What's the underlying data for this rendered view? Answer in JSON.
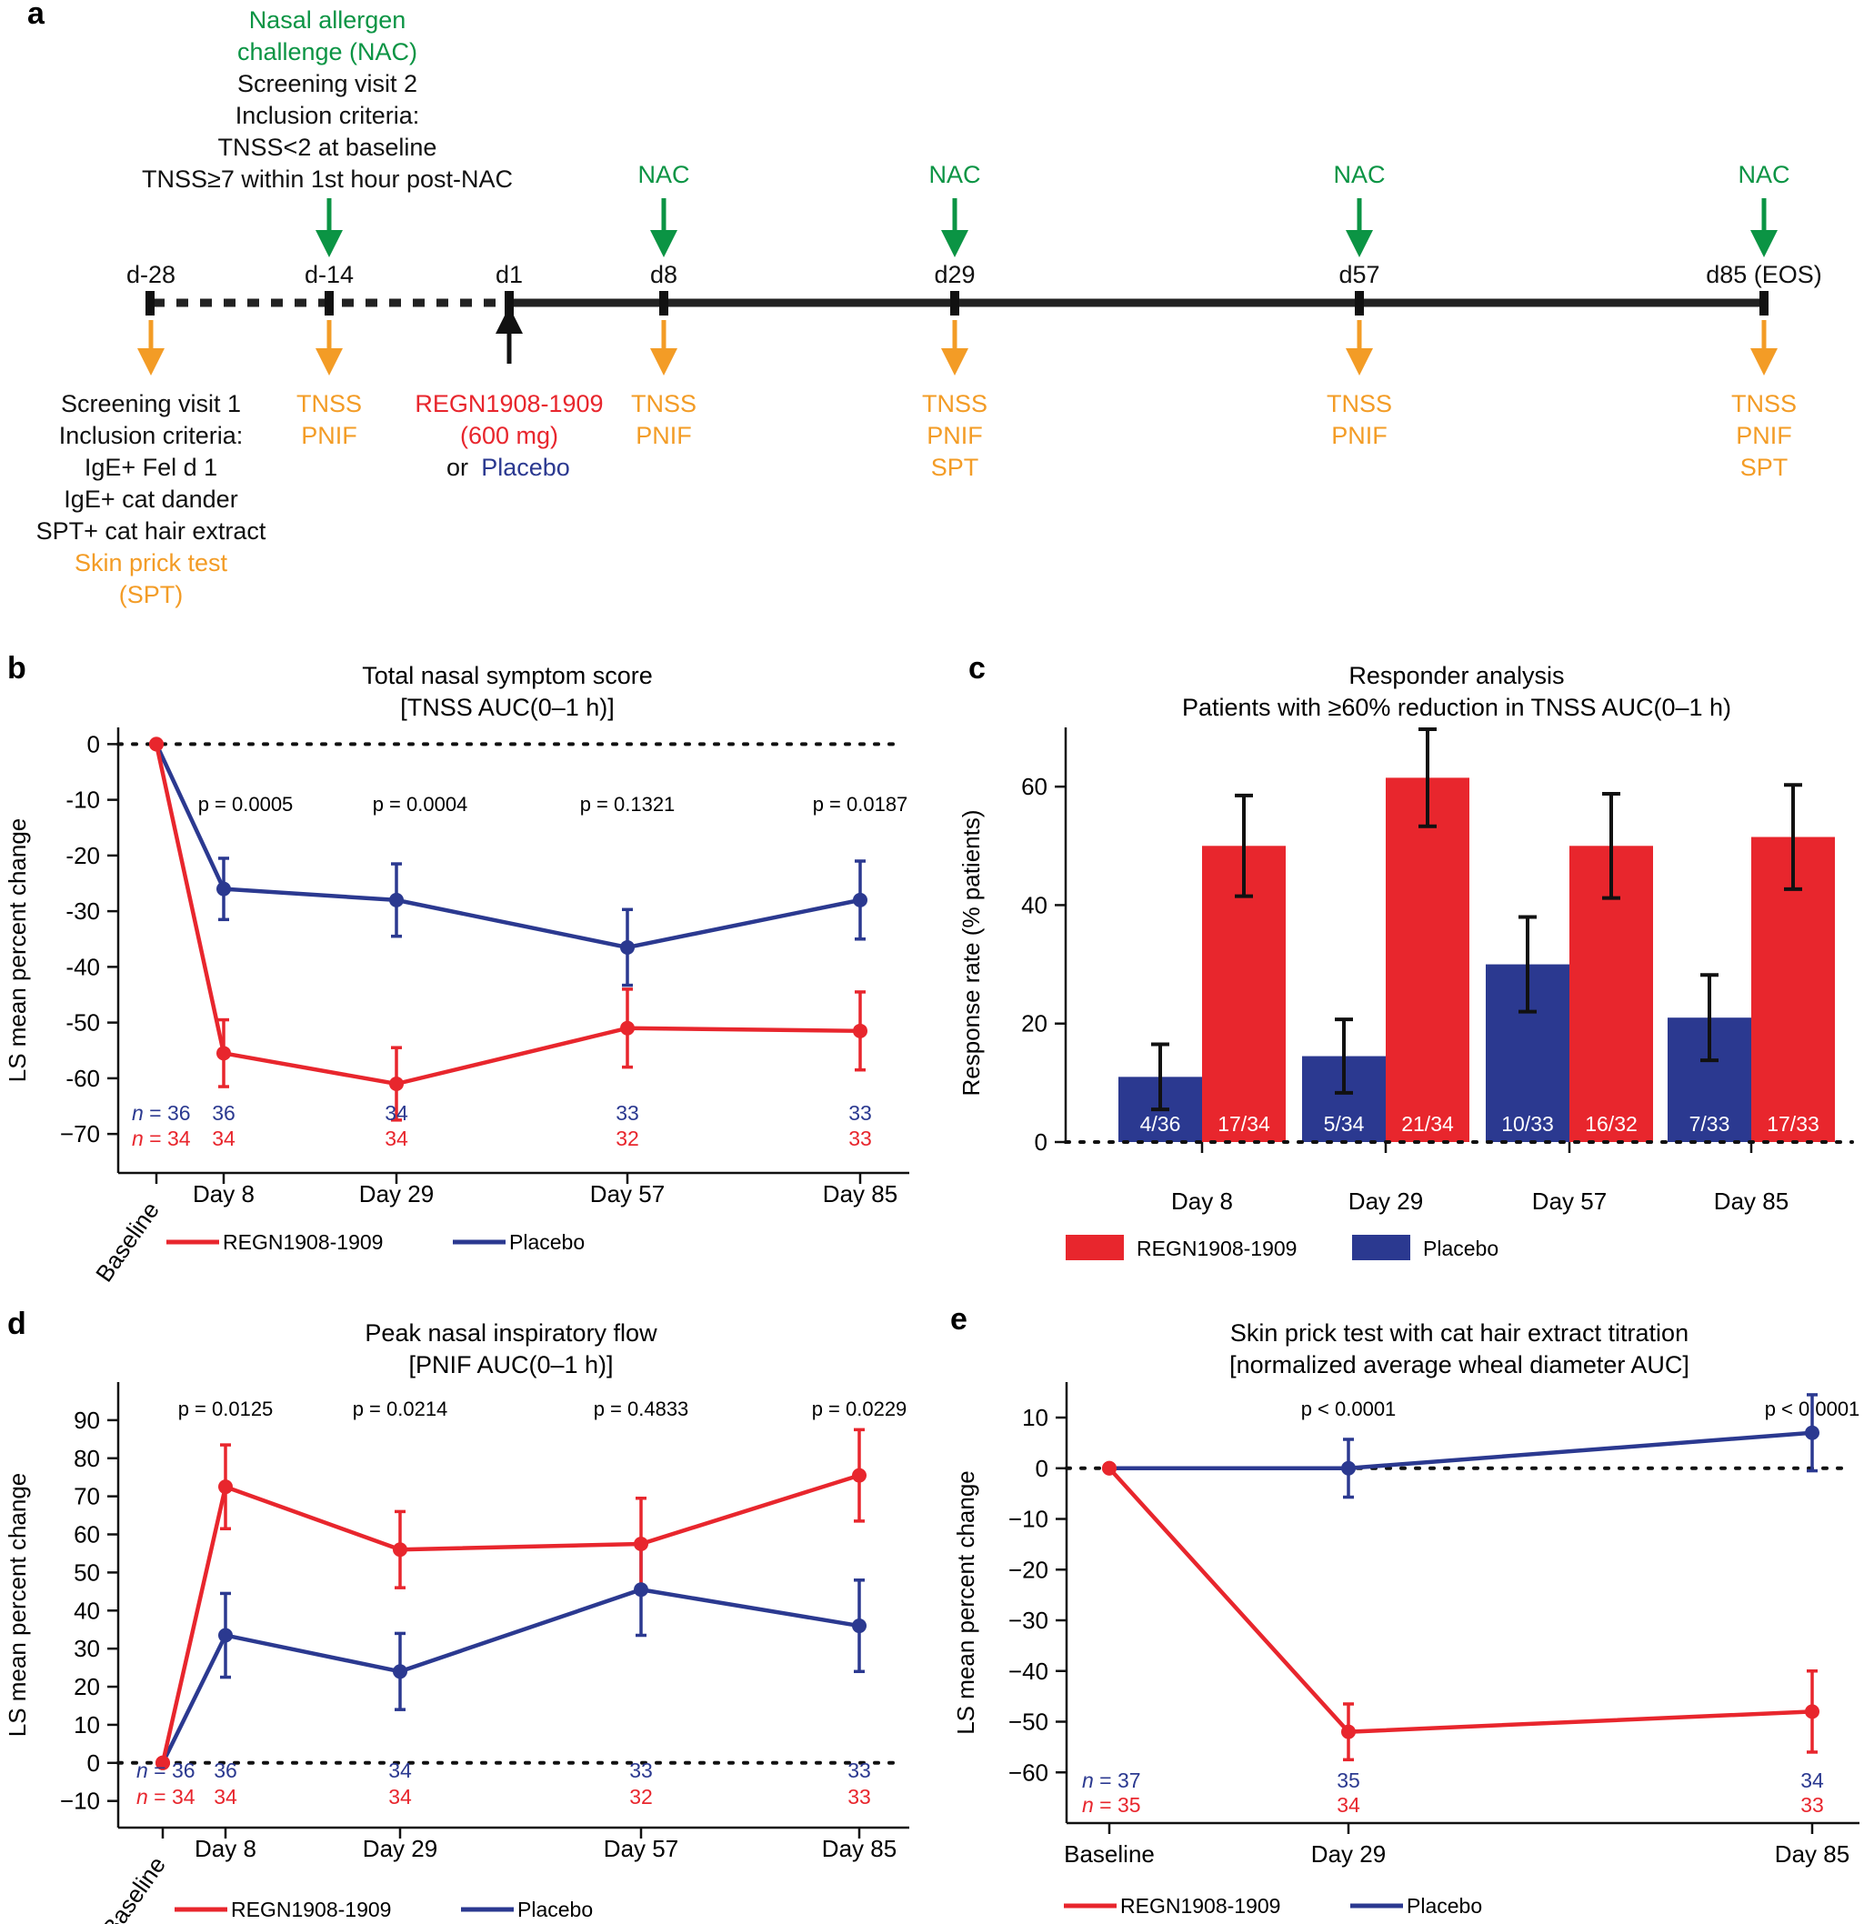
{
  "colors": {
    "red": "#e8262d",
    "blue": "#2b3990",
    "green": "#0b9444",
    "orange": "#f39c26",
    "black": "#222222"
  },
  "panel_a": {
    "label": "a",
    "top_annotation_green": [
      "Nasal allergen",
      "challenge (NAC)"
    ],
    "top_annotation_black": [
      "Screening visit 2",
      "Inclusion criteria:",
      "TNSS<2 at baseline",
      "TNSS≥7 within 1st hour post-NAC"
    ],
    "nac_label": "NAC",
    "days": [
      "d-28",
      "d-14",
      "d1",
      "d8",
      "d29",
      "d57",
      "d85 (EOS)"
    ],
    "screening1_black": [
      "Screening visit 1",
      "Inclusion criteria:",
      "IgE+ Fel d 1",
      "IgE+ cat dander",
      "SPT+ cat hair extract"
    ],
    "screening1_orange": [
      "Skin prick test",
      "(SPT)"
    ],
    "d14_below": [
      "TNSS",
      "PNIF"
    ],
    "d1_red": [
      "REGN1908-1909",
      "(600 mg)"
    ],
    "d1_or": "or",
    "d1_placebo": "Placebo",
    "d8_below": [
      "TNSS",
      "PNIF"
    ],
    "d29_below": [
      "TNSS",
      "PNIF",
      "SPT"
    ],
    "d57_below": [
      "TNSS",
      "PNIF"
    ],
    "d85_below": [
      "TNSS",
      "PNIF",
      "SPT"
    ]
  },
  "legend": {
    "treatment": "REGN1908-1909",
    "placebo": "Placebo"
  },
  "chart_data": [
    {
      "id": "b",
      "type": "line",
      "label": "b",
      "title": "Total nasal symptom score",
      "subtitle": "[TNSS AUC(0–1 h)]",
      "ylabel": "LS mean percent change",
      "ylim": [
        -77,
        3
      ],
      "yticks": [
        0,
        -10,
        -20,
        -30,
        -40,
        -50,
        -60,
        -70
      ],
      "ytick_labels": [
        "0",
        "-10",
        "-20",
        "-30",
        "-40",
        "-50",
        "-60",
        "−70"
      ],
      "categories": [
        "Baseline",
        "Day 8",
        "Day 29",
        "Day 57",
        "Day 85"
      ],
      "x": [
        0,
        7,
        28,
        56,
        84
      ],
      "reference_line": 0,
      "pvalues": [
        "p = 0.0005",
        "p = 0.0004",
        "p = 0.1321",
        "p = 0.0187"
      ],
      "series": [
        {
          "name": "REGN1908-1909",
          "color": "red",
          "values": [
            0,
            -55.5,
            -61,
            -51,
            -51.5
          ],
          "errors": [
            0,
            6,
            6.5,
            7,
            7
          ],
          "n": [
            "34",
            "34",
            "34",
            "32",
            "33"
          ]
        },
        {
          "name": "Placebo",
          "color": "blue",
          "values": [
            0,
            -26,
            -28,
            -36.5,
            -28
          ],
          "errors": [
            0,
            5.5,
            6.5,
            6.8,
            7
          ],
          "n": [
            "36",
            "36",
            "34",
            "33",
            "33"
          ]
        }
      ],
      "n_prefix": "n ="
    },
    {
      "id": "c",
      "type": "bar",
      "label": "c",
      "title": "Responder analysis",
      "subtitle": "Patients with ≥60% reduction in TNSS AUC(0–1 h)",
      "ylabel": "Response rate (% patients)",
      "ylim": [
        0,
        70
      ],
      "yticks": [
        0,
        20,
        40,
        60
      ],
      "categories": [
        "Day 8",
        "Day 29",
        "Day 57",
        "Day 85"
      ],
      "series": [
        {
          "name": "Placebo",
          "color": "blue",
          "values": [
            11,
            14.5,
            30,
            21
          ],
          "errors": [
            5.5,
            6.2,
            8,
            7.2
          ],
          "labels": [
            "4/36",
            "5/34",
            "10/33",
            "7/33"
          ]
        },
        {
          "name": "REGN1908-1909",
          "color": "red",
          "values": [
            50,
            61.5,
            50,
            51.5
          ],
          "errors": [
            8.5,
            8.2,
            8.8,
            8.8
          ],
          "labels": [
            "17/34",
            "21/34",
            "16/32",
            "17/33"
          ]
        }
      ]
    },
    {
      "id": "d",
      "type": "line",
      "label": "d",
      "title": "Peak nasal inspiratory flow",
      "subtitle": "[PNIF AUC(0–1 h)]",
      "ylabel": "LS mean percent change",
      "ylim": [
        -17,
        100
      ],
      "yticks": [
        90,
        80,
        70,
        60,
        50,
        40,
        30,
        20,
        10,
        0,
        -10
      ],
      "ytick_labels": [
        "90",
        "80",
        "70",
        "60",
        "50",
        "40",
        "30",
        "20",
        "10",
        "0",
        "−10"
      ],
      "categories": [
        "Baseline",
        "Day 8",
        "Day 29",
        "Day 57",
        "Day 85"
      ],
      "x": [
        0,
        7,
        28,
        56,
        84
      ],
      "reference_line": 0,
      "pvalues": [
        "p = 0.0125",
        "p = 0.0214",
        "p = 0.4833",
        "p = 0.0229"
      ],
      "series": [
        {
          "name": "REGN1908-1909",
          "color": "red",
          "values": [
            0,
            72.5,
            56,
            57.5,
            75.5
          ],
          "errors": [
            0,
            11,
            10,
            12,
            12
          ],
          "n": [
            "34",
            "34",
            "34",
            "32",
            "33"
          ]
        },
        {
          "name": "Placebo",
          "color": "blue",
          "values": [
            0,
            33.5,
            24,
            45.5,
            36
          ],
          "errors": [
            0,
            11,
            10,
            12,
            12
          ],
          "n": [
            "36",
            "36",
            "34",
            "33",
            "33"
          ]
        }
      ],
      "n_prefix": "n ="
    },
    {
      "id": "e",
      "type": "line",
      "label": "e",
      "title": "Skin prick test with cat hair extract titration",
      "subtitle": "[normalized average wheal diameter AUC]",
      "ylabel": "LS mean percent change",
      "ylim": [
        -70,
        17
      ],
      "yticks": [
        10,
        0,
        -10,
        -20,
        -30,
        -40,
        -50,
        -60
      ],
      "ytick_labels": [
        "10",
        "0",
        "−10",
        "−20",
        "−30",
        "−40",
        "−50",
        "−60"
      ],
      "categories": [
        "Baseline",
        "Day 29",
        "Day 85"
      ],
      "x": [
        0,
        28,
        84
      ],
      "reference_line": 0,
      "pvalues": [
        "p < 0.0001",
        "p < 0.0001"
      ],
      "series": [
        {
          "name": "REGN1908-1909",
          "color": "red",
          "values": [
            0,
            -52,
            -48
          ],
          "errors": [
            0,
            5.5,
            8
          ],
          "n": [
            "35",
            "34",
            "33"
          ]
        },
        {
          "name": "Placebo",
          "color": "blue",
          "values": [
            0,
            0,
            7
          ],
          "errors": [
            0,
            5.7,
            7.5
          ],
          "n": [
            "37",
            "35",
            "34"
          ]
        }
      ],
      "n_prefix": "n ="
    }
  ]
}
